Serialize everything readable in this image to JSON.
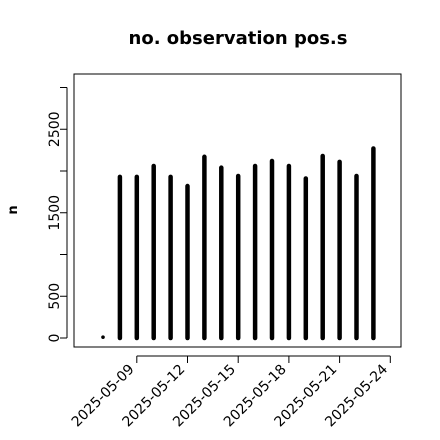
{
  "chart_data": {
    "type": "bar",
    "title": "no. observation pos.s",
    "xlabel": "",
    "ylabel": "n",
    "ylim": [
      -80,
      3100
    ],
    "yticks": [
      0,
      500,
      1500,
      2500
    ],
    "yticks_minor": [
      1000,
      2000,
      3000
    ],
    "x": [
      "2025-05-07",
      "2025-05-08",
      "2025-05-09",
      "2025-05-10",
      "2025-05-11",
      "2025-05-12",
      "2025-05-13",
      "2025-05-14",
      "2025-05-15",
      "2025-05-16",
      "2025-05-17",
      "2025-05-18",
      "2025-05-19",
      "2025-05-20",
      "2025-05-21",
      "2025-05-22",
      "2025-05-23",
      "2025-05-24"
    ],
    "values": [
      10,
      1930,
      1930,
      2060,
      1930,
      1820,
      2170,
      2040,
      1940,
      2060,
      2120,
      2060,
      1910,
      2180,
      2110,
      1940,
      2270,
      null
    ],
    "xtick_labels": [
      "2025-05-09",
      "2025-05-12",
      "2025-05-15",
      "2025-05-18",
      "2025-05-21",
      "2025-05-24"
    ],
    "highlight_tick": "2025-05-15",
    "highlight_color": "#228B22",
    "bar_color": "#000000",
    "grid": false,
    "legend": "none"
  }
}
